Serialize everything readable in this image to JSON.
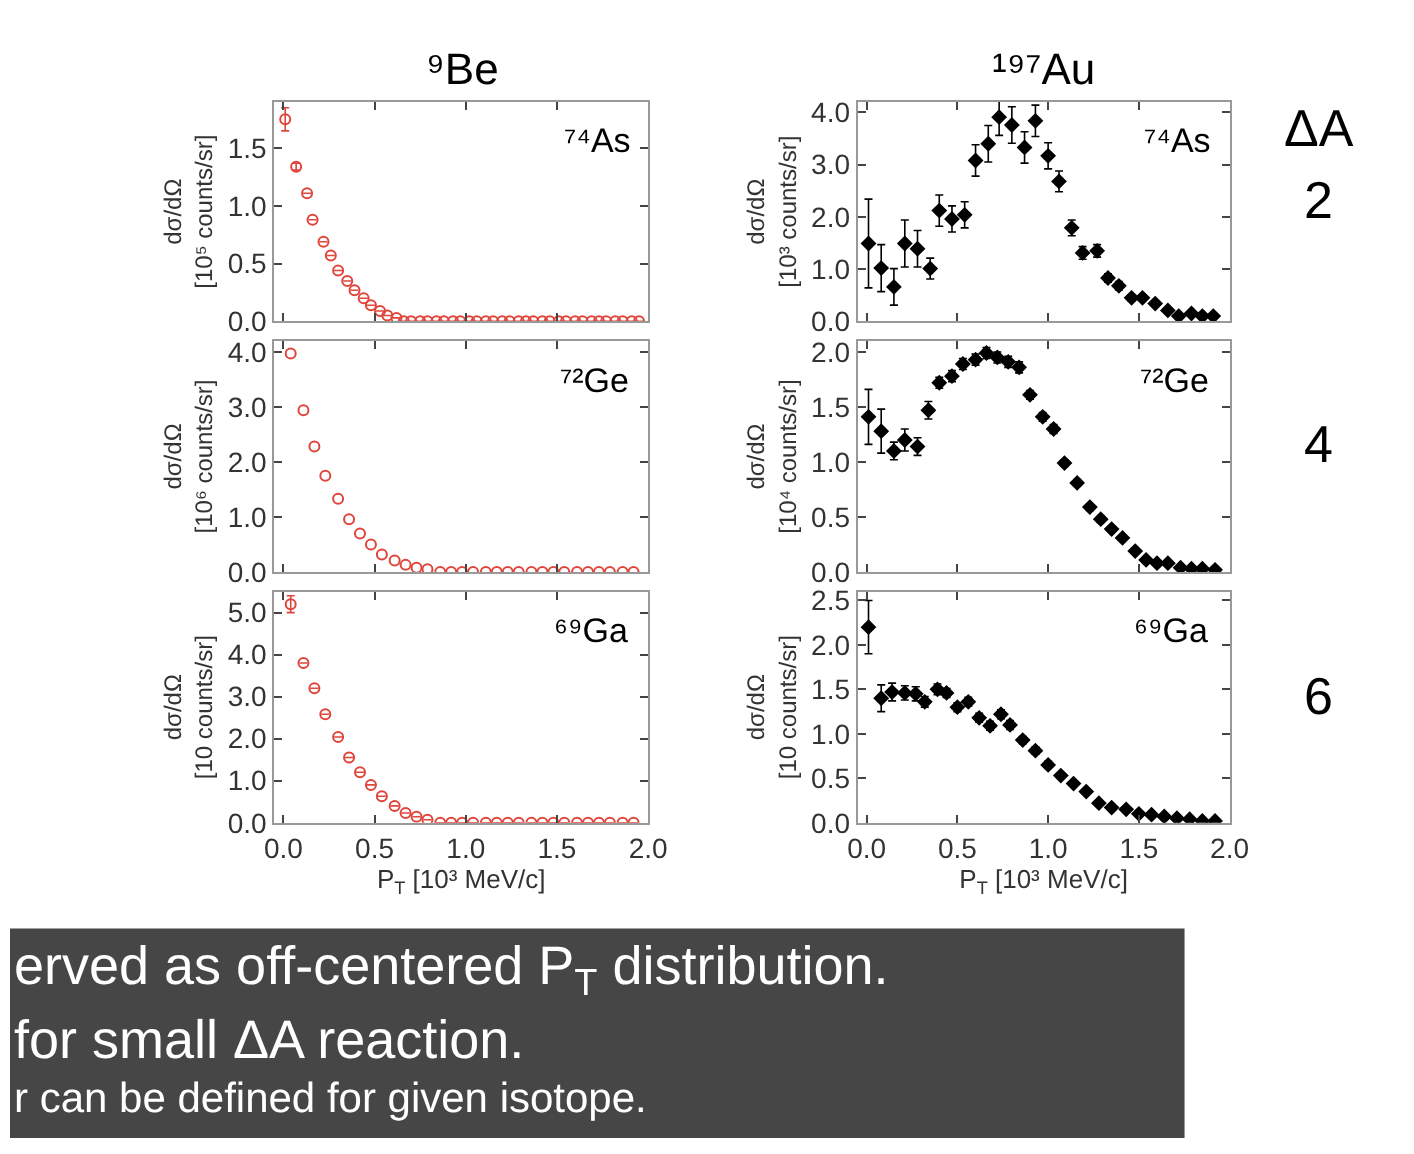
{
  "chart_data": [
    {
      "type": "scatter",
      "title": "⁹Be",
      "ylabel": "dσ/dΩ\n[10⁵ counts/sr]",
      "color": "#e0453c",
      "marker": "circle",
      "tick_labels": "y",
      "annotations": [
        "⁷⁴As"
      ],
      "x": [
        0.01,
        0.07,
        0.13,
        0.16,
        0.22,
        0.26,
        0.3,
        0.35,
        0.39,
        0.44,
        0.48,
        0.53,
        0.57,
        0.62,
        0.66,
        0.7,
        0.75,
        0.79,
        0.84,
        0.88,
        0.93,
        0.97,
        1.02,
        1.06,
        1.11,
        1.15,
        1.2,
        1.24,
        1.29,
        1.33,
        1.37,
        1.42,
        1.46,
        1.51,
        1.55,
        1.6,
        1.64,
        1.69,
        1.73,
        1.77,
        1.82,
        1.86,
        1.91,
        1.95
      ],
      "values": [
        1.75,
        1.34,
        1.11,
        0.88,
        0.69,
        0.57,
        0.44,
        0.35,
        0.27,
        0.2,
        0.14,
        0.09,
        0.05,
        0.03,
        0,
        0,
        0,
        0,
        0,
        0,
        0,
        0,
        0,
        0,
        0,
        0,
        0,
        0,
        0,
        0,
        0,
        0,
        0,
        0,
        0,
        0,
        0,
        0,
        0,
        0,
        0,
        0,
        0,
        0
      ],
      "errors": [
        0.1,
        0.03,
        null,
        null,
        null,
        null,
        null,
        null,
        null,
        null,
        null,
        null,
        null,
        null,
        null,
        null,
        null,
        null,
        null,
        null,
        null,
        null,
        null,
        null,
        null,
        null,
        null,
        null,
        null,
        null,
        null,
        null,
        null,
        null,
        null,
        null,
        null,
        null,
        null,
        null,
        null,
        null,
        null,
        null
      ],
      "xlim": [
        -0.05,
        2.0
      ],
      "xticks": [
        {
          "value": 0,
          "label": null
        },
        {
          "value": 0.5,
          "label": null
        },
        {
          "value": 1,
          "label": null
        },
        {
          "value": 1.5,
          "label": null
        },
        {
          "value": 2,
          "label": null
        }
      ],
      "ylim": [
        0,
        1.9
      ],
      "yticks": [
        {
          "value": 0,
          "label": "0.0"
        },
        {
          "value": 0.5,
          "label": "0.5"
        },
        {
          "value": 1,
          "label": "1.0"
        },
        {
          "value": 1.5,
          "label": "1.5"
        }
      ]
    },
    {
      "type": "scatter",
      "title": "¹⁹⁷Au",
      "ylabel": "dσ/dΩ\n[10³ counts/sr]",
      "color": "#000000",
      "marker": "diamond",
      "tick_labels": "y",
      "annotations": [
        "⁷⁴As",
        "ΔA",
        "2"
      ],
      "x": [
        0.01,
        0.08,
        0.15,
        0.21,
        0.28,
        0.35,
        0.4,
        0.47,
        0.54,
        0.6,
        0.67,
        0.73,
        0.8,
        0.87,
        0.93,
        1.0,
        1.06,
        1.13,
        1.19,
        1.27,
        1.33,
        1.39,
        1.46,
        1.52,
        1.59,
        1.66,
        1.72,
        1.79,
        1.85,
        1.91
      ],
      "values": [
        1.49,
        1.02,
        0.66,
        1.49,
        1.39,
        1.01,
        2.12,
        1.96,
        2.04,
        3.08,
        3.4,
        3.91,
        3.76,
        3.33,
        3.84,
        3.17,
        2.68,
        1.79,
        1.31,
        1.35,
        0.83,
        0.68,
        0.45,
        0.45,
        0.34,
        0.21,
        0.1,
        0.15,
        0.1,
        0.1
      ],
      "errors": [
        0.85,
        0.45,
        0.35,
        0.45,
        0.35,
        0.2,
        0.3,
        0.25,
        0.25,
        0.3,
        0.35,
        0.35,
        0.35,
        0.3,
        0.3,
        0.25,
        0.2,
        0.15,
        0.12,
        0.12,
        0.08,
        0.08,
        0.06,
        0.06,
        null,
        null,
        null,
        null,
        null,
        null
      ],
      "xlim": [
        -0.05,
        2.0
      ],
      "xticks": [
        {
          "value": 0,
          "label": null
        },
        {
          "value": 0.5,
          "label": null
        },
        {
          "value": 1,
          "label": null
        },
        {
          "value": 1.5,
          "label": null
        },
        {
          "value": 2,
          "label": null
        }
      ],
      "ylim": [
        0,
        4.2
      ],
      "yticks": [
        {
          "value": 0,
          "label": "0.0"
        },
        {
          "value": 1,
          "label": "1.0"
        },
        {
          "value": 2,
          "label": "2.0"
        },
        {
          "value": 3,
          "label": "3.0"
        },
        {
          "value": 4,
          "label": "4.0"
        }
      ]
    },
    {
      "type": "scatter",
      "ylabel": "dσ/dΩ\n[10⁶ counts/sr]",
      "color": "#e0453c",
      "marker": "circle",
      "tick_labels": "y",
      "annotations": [
        "⁷²Ge"
      ],
      "x": [
        0.04,
        0.11,
        0.17,
        0.23,
        0.3,
        0.36,
        0.42,
        0.48,
        0.54,
        0.61,
        0.67,
        0.73,
        0.79,
        0.86,
        0.92,
        0.98,
        1.04,
        1.11,
        1.17,
        1.23,
        1.29,
        1.36,
        1.42,
        1.48,
        1.54,
        1.61,
        1.67,
        1.73,
        1.79,
        1.86,
        1.92
      ],
      "values": [
        3.97,
        2.94,
        2.28,
        1.75,
        1.33,
        0.96,
        0.7,
        0.5,
        0.32,
        0.21,
        0.13,
        0.08,
        0.05,
        0,
        0,
        0,
        0,
        0,
        0,
        0,
        0,
        0,
        0,
        0,
        0,
        0,
        0,
        0,
        0,
        0,
        0
      ],
      "xlim": [
        -0.05,
        2.0
      ],
      "xticks": [
        {
          "value": 0,
          "label": null
        },
        {
          "value": 0.5,
          "label": null
        },
        {
          "value": 1,
          "label": null
        },
        {
          "value": 1.5,
          "label": null
        },
        {
          "value": 2,
          "label": null
        }
      ],
      "ylim": [
        0,
        4.2
      ],
      "yticks": [
        {
          "value": 0,
          "label": "0.0"
        },
        {
          "value": 1,
          "label": "1.0"
        },
        {
          "value": 2,
          "label": "2.0"
        },
        {
          "value": 3,
          "label": "3.0"
        },
        {
          "value": 4,
          "label": "4.0"
        }
      ]
    },
    {
      "type": "scatter",
      "ylabel": "dσ/dΩ\n[10⁴ counts/sr]",
      "color": "#000000",
      "marker": "diamond",
      "tick_labels": "y",
      "annotations": [
        "⁷²Ge",
        "4"
      ],
      "x": [
        0.01,
        0.08,
        0.15,
        0.21,
        0.28,
        0.34,
        0.4,
        0.47,
        0.53,
        0.6,
        0.66,
        0.72,
        0.78,
        0.84,
        0.9,
        0.97,
        1.03,
        1.09,
        1.16,
        1.23,
        1.29,
        1.35,
        1.41,
        1.48,
        1.54,
        1.6,
        1.66,
        1.73,
        1.79,
        1.85,
        1.92
      ],
      "values": [
        1.41,
        1.28,
        1.1,
        1.2,
        1.14,
        1.47,
        1.72,
        1.78,
        1.89,
        1.93,
        1.99,
        1.95,
        1.91,
        1.86,
        1.61,
        1.41,
        1.3,
        0.99,
        0.81,
        0.59,
        0.48,
        0.39,
        0.31,
        0.19,
        0.11,
        0.08,
        0.08,
        0.04,
        0.03,
        0.03,
        0.02
      ],
      "errors": [
        0.25,
        0.2,
        0.08,
        0.1,
        0.08,
        0.08,
        0.05,
        0.05,
        0.05,
        0.05,
        0.05,
        0.05,
        0.05,
        0.05,
        0.04,
        0.04,
        0.04,
        0.03,
        0.03,
        0.03,
        0.03,
        null,
        null,
        null,
        null,
        null,
        null,
        null,
        null,
        null,
        null
      ],
      "xlim": [
        -0.05,
        2.0
      ],
      "xticks": [
        {
          "value": 0,
          "label": null
        },
        {
          "value": 0.5,
          "label": null
        },
        {
          "value": 1,
          "label": null
        },
        {
          "value": 1.5,
          "label": null
        },
        {
          "value": 2,
          "label": null
        }
      ],
      "ylim": [
        0,
        2.1
      ],
      "yticks": [
        {
          "value": 0,
          "label": "0.0"
        },
        {
          "value": 0.5,
          "label": "0.5"
        },
        {
          "value": 1,
          "label": "1.0"
        },
        {
          "value": 1.5,
          "label": "1.5"
        },
        {
          "value": 2,
          "label": "2.0"
        }
      ]
    },
    {
      "type": "scatter",
      "xlabel": "P$_{T}$ [10³ MeV/c]",
      "ylabel": "dσ/dΩ\n[10 counts/sr]",
      "color": "#e0453c",
      "marker": "circle",
      "annotations": [
        "⁶⁹Ga"
      ],
      "x": [
        0.04,
        0.11,
        0.17,
        0.23,
        0.3,
        0.36,
        0.42,
        0.48,
        0.54,
        0.61,
        0.67,
        0.73,
        0.79,
        0.86,
        0.92,
        0.98,
        1.04,
        1.11,
        1.17,
        1.23,
        1.29,
        1.36,
        1.42,
        1.48,
        1.54,
        1.61,
        1.67,
        1.73,
        1.79,
        1.86,
        1.92
      ],
      "values": [
        5.2,
        3.8,
        3.2,
        2.58,
        2.04,
        1.55,
        1.2,
        0.9,
        0.63,
        0.4,
        0.23,
        0.14,
        0.07,
        0,
        0,
        0,
        0,
        0,
        0,
        0,
        0,
        0,
        0,
        0,
        0,
        0,
        0,
        0,
        0,
        0,
        0
      ],
      "errors": [
        0.2,
        null,
        null,
        null,
        null,
        null,
        null,
        null,
        null,
        null,
        null,
        null,
        null,
        null,
        null,
        null,
        null,
        null,
        null,
        null,
        null,
        null,
        null,
        null,
        null,
        null,
        null,
        null,
        null,
        null,
        null
      ],
      "xlim": [
        -0.05,
        2.0
      ],
      "xticks": [
        {
          "value": 0,
          "label": "0.0"
        },
        {
          "value": 0.5,
          "label": "0.5"
        },
        {
          "value": 1,
          "label": "1.0"
        },
        {
          "value": 1.5,
          "label": "1.5"
        },
        {
          "value": 2,
          "label": "2.0"
        }
      ],
      "ylim": [
        0,
        5.5
      ],
      "yticks": [
        {
          "value": 0,
          "label": "0.0"
        },
        {
          "value": 1,
          "label": "1.0"
        },
        {
          "value": 2,
          "label": "2.0"
        },
        {
          "value": 3,
          "label": "3.0"
        },
        {
          "value": 4,
          "label": "4.0"
        },
        {
          "value": 5,
          "label": "5.0"
        }
      ]
    },
    {
      "type": "scatter",
      "xlabel": "P$_{T}$ [10³ MeV/c]",
      "ylabel": "dσ/dΩ\n[10 counts/sr]",
      "color": "#000000",
      "marker": "diamond",
      "annotations": [
        "⁶⁹Ga",
        "6"
      ],
      "x": [
        0.01,
        0.08,
        0.14,
        0.21,
        0.27,
        0.32,
        0.39,
        0.44,
        0.5,
        0.56,
        0.62,
        0.68,
        0.74,
        0.79,
        0.86,
        0.93,
        1.0,
        1.07,
        1.14,
        1.21,
        1.28,
        1.35,
        1.43,
        1.5,
        1.57,
        1.64,
        1.71,
        1.78,
        1.85,
        1.92
      ],
      "values": [
        2.2,
        1.4,
        1.47,
        1.46,
        1.45,
        1.36,
        1.5,
        1.46,
        1.3,
        1.36,
        1.18,
        1.09,
        1.22,
        1.1,
        0.93,
        0.81,
        0.65,
        0.53,
        0.44,
        0.35,
        0.22,
        0.17,
        0.15,
        0.1,
        0.09,
        0.07,
        0.05,
        0.04,
        0.02,
        0.02
      ],
      "errors": [
        0.3,
        0.15,
        0.1,
        0.08,
        0.08,
        0.06,
        0.06,
        0.05,
        0.05,
        0.05,
        0.05,
        0.05,
        0.05,
        0.05,
        0.04,
        0.04,
        0.04,
        null,
        null,
        null,
        null,
        null,
        null,
        null,
        null,
        null,
        null,
        null,
        null,
        null
      ],
      "xlim": [
        -0.05,
        2.0
      ],
      "xticks": [
        {
          "value": 0,
          "label": "0.0"
        },
        {
          "value": 0.5,
          "label": "0.5"
        },
        {
          "value": 1,
          "label": "1.0"
        },
        {
          "value": 1.5,
          "label": "1.5"
        },
        {
          "value": 2,
          "label": "2.0"
        }
      ],
      "ylim": [
        0,
        2.6
      ],
      "yticks": [
        {
          "value": 0,
          "label": "0.0"
        },
        {
          "value": 0.5,
          "label": "0.5"
        },
        {
          "value": 1,
          "label": "1.0"
        },
        {
          "value": 1.5,
          "label": "1.5"
        },
        {
          "value": 2,
          "label": "2.0"
        },
        {
          "value": 2.5,
          "label": "2.5"
        }
      ]
    },
    {
      "type": "other",
      "annotations": [
        "erved as off-centered P$_{T}$ distribution.",
        "for small ΔA reaction.",
        "r can be defined for given isotope."
      ]
    }
  ]
}
